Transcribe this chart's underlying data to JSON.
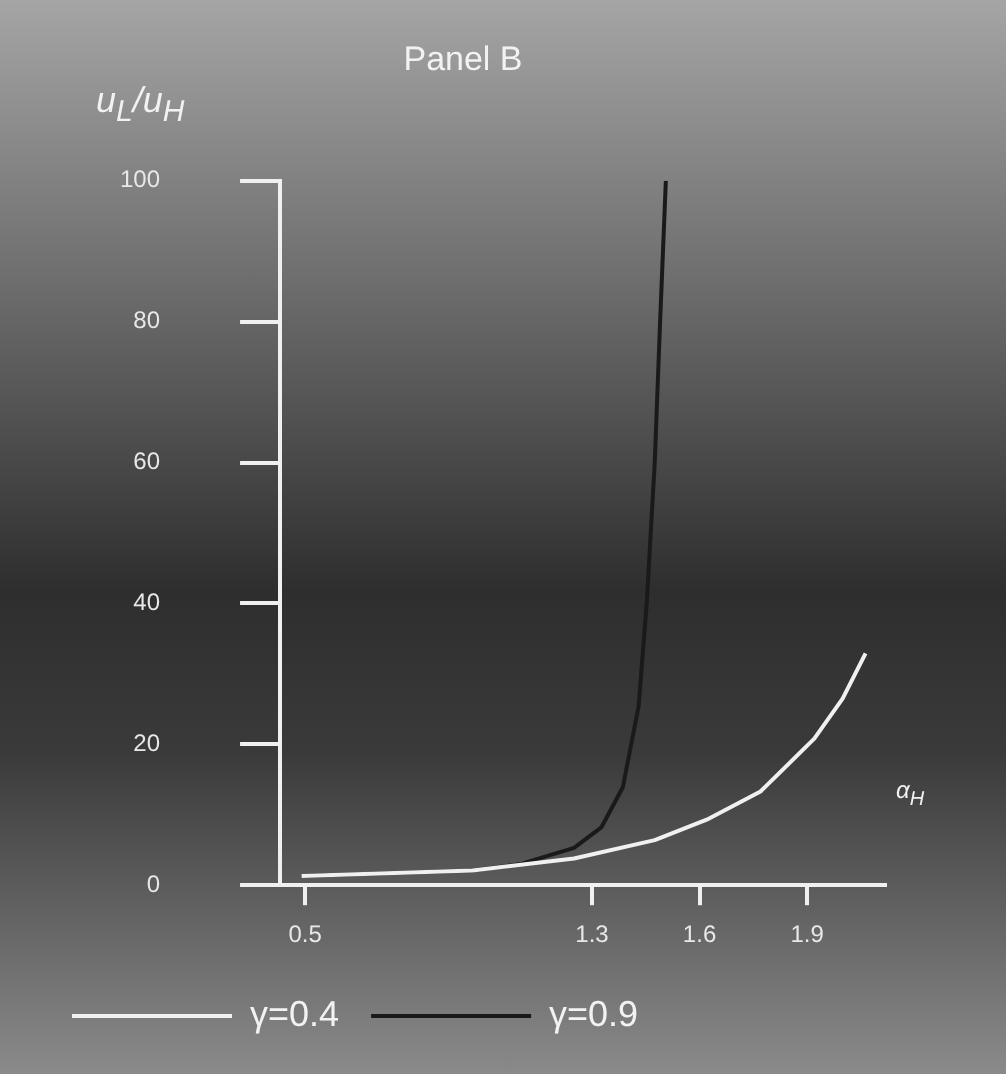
{
  "chart_data": {
    "type": "line",
    "title": "Panel B",
    "xlabel": "α$_{H}$",
    "ylabel": "u$_{L}$/u$_{H}$",
    "xlim": [
      0.43,
      2.12
    ],
    "xticks": [
      0.5,
      1.3,
      1.6,
      1.9
    ],
    "ylim": [
      0,
      100
    ],
    "yticks": [
      0,
      20,
      40,
      60,
      80,
      100
    ],
    "series": [
      {
        "name": "γ=0.4",
        "color": "#f0f0f0",
        "x": [
          0.49,
          0.967,
          1.25,
          1.475,
          1.62,
          1.77,
          1.92,
          1.999,
          2.063
        ],
        "values": [
          1.3,
          2.1,
          3.8,
          6.4,
          9.3,
          13.3,
          20.8,
          26.5,
          32.9
        ]
      },
      {
        "name": "γ=0.9",
        "color": "#1a1a1a",
        "x": [
          0.49,
          0.967,
          1.1,
          1.25,
          1.326,
          1.386,
          1.43,
          1.453,
          1.475,
          1.49,
          1.506
        ],
        "values": [
          1.3,
          2.1,
          3.0,
          5.3,
          8.2,
          13.9,
          25.4,
          40.3,
          60,
          80,
          100
        ]
      }
    ],
    "grid": false,
    "legend": "bottom left",
    "marker": "none",
    "line_style": "solid"
  }
}
